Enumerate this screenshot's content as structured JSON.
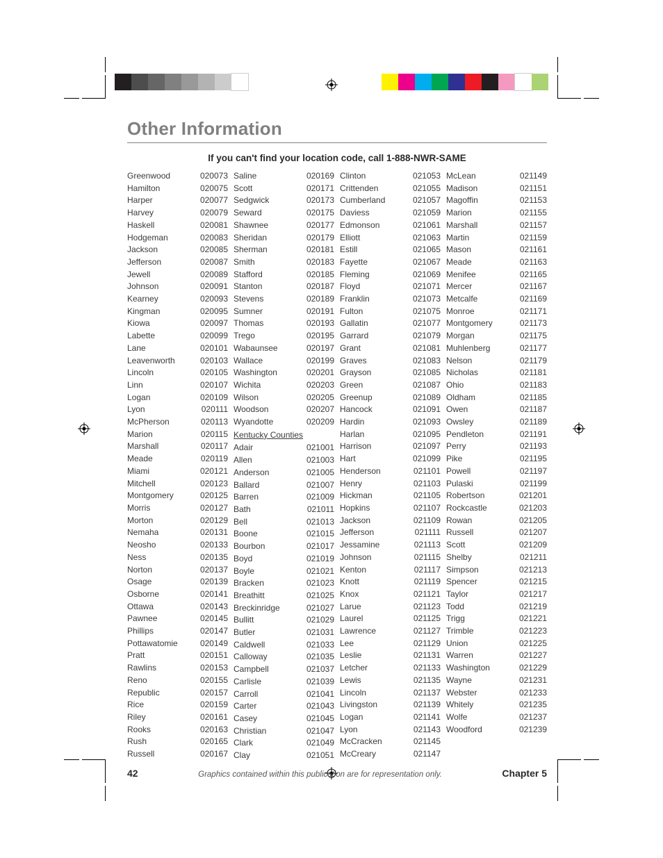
{
  "title": "Other Information",
  "subtitle": "If you can't find your location code, call 1-888-NWR-SAME",
  "page_number": "42",
  "disclaimer": "Graphics contained within this publication are for representation only.",
  "chapter": "Chapter 5",
  "color_bars_left": [
    "#231f20",
    "#4d4d4d",
    "#666666",
    "#808080",
    "#999999",
    "#b3b3b3",
    "#cccccc",
    "#ffffff"
  ],
  "color_bars_right": [
    "#fff200",
    "#ec008c",
    "#00aeef",
    "#00a651",
    "#2e3192",
    "#ed1c24",
    "#231f20",
    "#f49ac1",
    "#ffffff",
    "#acd373"
  ],
  "col1": [
    [
      "Greenwood",
      "020073"
    ],
    [
      "Hamilton",
      "020075"
    ],
    [
      "Harper",
      "020077"
    ],
    [
      "Harvey",
      "020079"
    ],
    [
      "Haskell",
      "020081"
    ],
    [
      "Hodgeman",
      "020083"
    ],
    [
      "Jackson",
      "020085"
    ],
    [
      "Jefferson",
      "020087"
    ],
    [
      "Jewell",
      "020089"
    ],
    [
      "Johnson",
      "020091"
    ],
    [
      "Kearney",
      "020093"
    ],
    [
      "Kingman",
      "020095"
    ],
    [
      "Kiowa",
      "020097"
    ],
    [
      "Labette",
      "020099"
    ],
    [
      "Lane",
      "020101"
    ],
    [
      "Leavenworth",
      "020103"
    ],
    [
      "Lincoln",
      "020105"
    ],
    [
      "Linn",
      "020107"
    ],
    [
      "Logan",
      "020109"
    ],
    [
      "Lyon",
      "020111"
    ],
    [
      "McPherson",
      "020113"
    ],
    [
      "Marion",
      "020115"
    ],
    [
      "Marshall",
      "020117"
    ],
    [
      "Meade",
      "020119"
    ],
    [
      "Miami",
      "020121"
    ],
    [
      "Mitchell",
      "020123"
    ],
    [
      "Montgomery",
      "020125"
    ],
    [
      "Morris",
      "020127"
    ],
    [
      "Morton",
      "020129"
    ],
    [
      "Nemaha",
      "020131"
    ],
    [
      "Neosho",
      "020133"
    ],
    [
      "Ness",
      "020135"
    ],
    [
      "Norton",
      "020137"
    ],
    [
      "Osage",
      "020139"
    ],
    [
      "Osborne",
      "020141"
    ],
    [
      "Ottawa",
      "020143"
    ],
    [
      "Pawnee",
      "020145"
    ],
    [
      "Phillips",
      "020147"
    ],
    [
      "Pottawatomie",
      "020149"
    ],
    [
      "Pratt",
      "020151"
    ],
    [
      "Rawlins",
      "020153"
    ],
    [
      "Reno",
      "020155"
    ],
    [
      "Republic",
      "020157"
    ],
    [
      "Rice",
      "020159"
    ],
    [
      "Riley",
      "020161"
    ],
    [
      "Rooks",
      "020163"
    ],
    [
      "Rush",
      "020165"
    ],
    [
      "Russell",
      "020167"
    ]
  ],
  "col2_a": [
    [
      "Saline",
      "020169"
    ],
    [
      "Scott",
      "020171"
    ],
    [
      "Sedgwick",
      "020173"
    ],
    [
      "Seward",
      "020175"
    ],
    [
      "Shawnee",
      "020177"
    ],
    [
      "Sheridan",
      "020179"
    ],
    [
      "Sherman",
      "020181"
    ],
    [
      "Smith",
      "020183"
    ],
    [
      "Stafford",
      "020185"
    ],
    [
      "Stanton",
      "020187"
    ],
    [
      "Stevens",
      "020189"
    ],
    [
      "Sumner",
      "020191"
    ],
    [
      "Thomas",
      "020193"
    ],
    [
      "Trego",
      "020195"
    ],
    [
      "Wabaunsee",
      "020197"
    ],
    [
      "Wallace",
      "020199"
    ],
    [
      "Washington",
      "020201"
    ],
    [
      "Wichita",
      "020203"
    ],
    [
      "Wilson",
      "020205"
    ],
    [
      "Woodson",
      "020207"
    ],
    [
      "Wyandotte",
      "020209"
    ]
  ],
  "col2_heading": "Kentucky Counties",
  "col2_b": [
    [
      "Adair",
      "021001"
    ],
    [
      "Allen",
      "021003"
    ],
    [
      "Anderson",
      "021005"
    ],
    [
      "Ballard",
      "021007"
    ],
    [
      "Barren",
      "021009"
    ],
    [
      "Bath",
      "021011"
    ],
    [
      "Bell",
      "021013"
    ],
    [
      "Boone",
      "021015"
    ],
    [
      "Bourbon",
      "021017"
    ],
    [
      "Boyd",
      "021019"
    ],
    [
      "Boyle",
      "021021"
    ],
    [
      "Bracken",
      "021023"
    ],
    [
      "Breathitt",
      "021025"
    ],
    [
      "Breckinridge",
      "021027"
    ],
    [
      "Bullitt",
      "021029"
    ],
    [
      "Butler",
      "021031"
    ],
    [
      "Caldwell",
      "021033"
    ],
    [
      "Calloway",
      "021035"
    ],
    [
      "Campbell",
      "021037"
    ],
    [
      "Carlisle",
      "021039"
    ],
    [
      "Carroll",
      "021041"
    ],
    [
      "Carter",
      "021043"
    ],
    [
      "Casey",
      "021045"
    ],
    [
      "Christian",
      "021047"
    ],
    [
      "Clark",
      "021049"
    ],
    [
      "Clay",
      "021051"
    ]
  ],
  "col3": [
    [
      "Clinton",
      "021053"
    ],
    [
      "Crittenden",
      "021055"
    ],
    [
      "Cumberland",
      "021057"
    ],
    [
      "Daviess",
      "021059"
    ],
    [
      "Edmonson",
      "021061"
    ],
    [
      "Elliott",
      "021063"
    ],
    [
      "Estill",
      "021065"
    ],
    [
      "Fayette",
      "021067"
    ],
    [
      "Fleming",
      "021069"
    ],
    [
      "Floyd",
      "021071"
    ],
    [
      "Franklin",
      "021073"
    ],
    [
      "Fulton",
      "021075"
    ],
    [
      "Gallatin",
      "021077"
    ],
    [
      "Garrard",
      "021079"
    ],
    [
      "Grant",
      "021081"
    ],
    [
      "Graves",
      "021083"
    ],
    [
      "Grayson",
      "021085"
    ],
    [
      "Green",
      "021087"
    ],
    [
      "Greenup",
      "021089"
    ],
    [
      "Hancock",
      "021091"
    ],
    [
      "Hardin",
      "021093"
    ],
    [
      "Harlan",
      "021095"
    ],
    [
      "Harrison",
      "021097"
    ],
    [
      "Hart",
      "021099"
    ],
    [
      "Henderson",
      "021101"
    ],
    [
      "Henry",
      "021103"
    ],
    [
      "Hickman",
      "021105"
    ],
    [
      "Hopkins",
      "021107"
    ],
    [
      "Jackson",
      "021109"
    ],
    [
      "Jefferson",
      "021111"
    ],
    [
      "Jessamine",
      "021113"
    ],
    [
      "Johnson",
      "021115"
    ],
    [
      "Kenton",
      "021117"
    ],
    [
      "Knott",
      "021119"
    ],
    [
      "Knox",
      "021121"
    ],
    [
      "Larue",
      "021123"
    ],
    [
      "Laurel",
      "021125"
    ],
    [
      "Lawrence",
      "021127"
    ],
    [
      "Lee",
      "021129"
    ],
    [
      "Leslie",
      "021131"
    ],
    [
      "Letcher",
      "021133"
    ],
    [
      "Lewis",
      "021135"
    ],
    [
      "Lincoln",
      "021137"
    ],
    [
      "Livingston",
      "021139"
    ],
    [
      "Logan",
      "021141"
    ],
    [
      "Lyon",
      "021143"
    ],
    [
      "McCracken",
      "021145"
    ],
    [
      "McCreary",
      "021147"
    ]
  ],
  "col4": [
    [
      "McLean",
      "021149"
    ],
    [
      "Madison",
      "021151"
    ],
    [
      "Magoffin",
      "021153"
    ],
    [
      "Marion",
      "021155"
    ],
    [
      "Marshall",
      "021157"
    ],
    [
      "Martin",
      "021159"
    ],
    [
      "Mason",
      "021161"
    ],
    [
      "Meade",
      "021163"
    ],
    [
      "Menifee",
      "021165"
    ],
    [
      "Mercer",
      "021167"
    ],
    [
      "Metcalfe",
      "021169"
    ],
    [
      "Monroe",
      "021171"
    ],
    [
      "Montgomery",
      "021173"
    ],
    [
      "Morgan",
      "021175"
    ],
    [
      "Muhlenberg",
      "021177"
    ],
    [
      "Nelson",
      "021179"
    ],
    [
      "Nicholas",
      "021181"
    ],
    [
      "Ohio",
      "021183"
    ],
    [
      "Oldham",
      "021185"
    ],
    [
      "Owen",
      "021187"
    ],
    [
      "Owsley",
      "021189"
    ],
    [
      "Pendleton",
      "021191"
    ],
    [
      "Perry",
      "021193"
    ],
    [
      "Pike",
      "021195"
    ],
    [
      "Powell",
      "021197"
    ],
    [
      "Pulaski",
      "021199"
    ],
    [
      "Robertson",
      "021201"
    ],
    [
      "Rockcastle",
      "021203"
    ],
    [
      "Rowan",
      "021205"
    ],
    [
      "Russell",
      "021207"
    ],
    [
      "Scott",
      "021209"
    ],
    [
      "Shelby",
      "021211"
    ],
    [
      "Simpson",
      "021213"
    ],
    [
      "Spencer",
      "021215"
    ],
    [
      "Taylor",
      "021217"
    ],
    [
      "Todd",
      "021219"
    ],
    [
      "Trigg",
      "021221"
    ],
    [
      "Trimble",
      "021223"
    ],
    [
      "Union",
      "021225"
    ],
    [
      "Warren",
      "021227"
    ],
    [
      "Washington",
      "021229"
    ],
    [
      "Wayne",
      "021231"
    ],
    [
      "Webster",
      "021233"
    ],
    [
      "Whitely",
      "021235"
    ],
    [
      "Wolfe",
      "021237"
    ],
    [
      "Woodford",
      "021239"
    ]
  ]
}
